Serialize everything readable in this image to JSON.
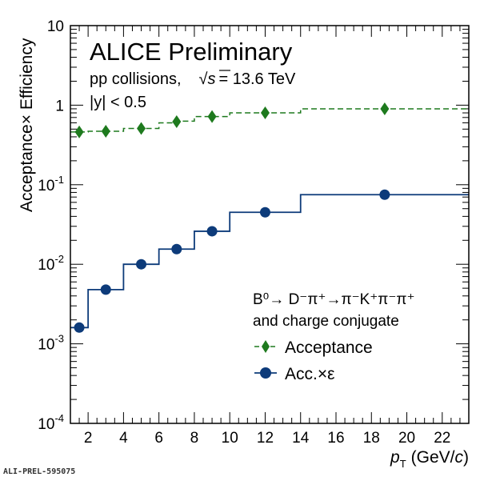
{
  "chart_data": {
    "type": "line",
    "title": "ALICE Preliminary",
    "annotations": {
      "system_prefix": "pp collisions,",
      "energy_sqrt": "√",
      "energy_symbol": "s",
      "energy_value": "= 13.6 TeV",
      "rapidity": "|y| < 0.5"
    },
    "xlabel": "p",
    "xlabel_sub": "T",
    "xlabel_unit_open": "(GeV/",
    "xlabel_unit_c": "c",
    "xlabel_unit_close": ")",
    "ylabel": "Acceptance× Efficiency",
    "xlim": [
      1,
      23.5
    ],
    "ylim": [
      0.0001,
      10
    ],
    "yscale": "log",
    "x_ticks": [
      "2",
      "4",
      "6",
      "8",
      "10",
      "12",
      "14",
      "16",
      "18",
      "20",
      "22"
    ],
    "y_ticks": [
      {
        "base": "10",
        "exp": "-4"
      },
      {
        "base": "10",
        "exp": "-3"
      },
      {
        "base": "10",
        "exp": "-2"
      },
      {
        "base": "10",
        "exp": "-1"
      },
      {
        "base": "1",
        "exp": ""
      },
      {
        "base": "10",
        "exp": ""
      }
    ],
    "legend": {
      "placement": "bottom-right",
      "header_line1": "B⁰→ D⁻π⁺→π⁻K⁺π⁻π⁺",
      "header_line2": "and charge conjugate"
    },
    "bin_edges": [
      1,
      2,
      4,
      6,
      8,
      10,
      14,
      23.5
    ],
    "series": [
      {
        "name": "Acceptance",
        "style": "dashed-step",
        "color": "#1e7a1e",
        "marker": "diamond",
        "bin_edges": [
          1,
          2,
          4,
          6,
          7,
          8,
          10,
          12,
          14,
          23.5
        ],
        "bin_values": [
          0.46,
          0.47,
          0.51,
          0.6,
          0.63,
          0.72,
          0.8,
          0.8,
          0.9
        ],
        "points_x": [
          1.5,
          3,
          5,
          7,
          9,
          12,
          18.75
        ],
        "points_y": [
          0.46,
          0.47,
          0.51,
          0.62,
          0.72,
          0.8,
          0.9
        ]
      },
      {
        "name": "Acc.×ε",
        "style": "solid-step",
        "color": "#0d3b7a",
        "marker": "circle",
        "bin_edges": [
          1,
          2,
          4,
          6,
          8,
          10,
          14,
          23.5
        ],
        "bin_values": [
          0.0016,
          0.0048,
          0.01,
          0.0155,
          0.026,
          0.045,
          0.075
        ],
        "points_x": [
          1.5,
          3,
          5,
          7,
          9,
          12,
          18.75
        ],
        "points_y": [
          0.0016,
          0.0048,
          0.01,
          0.0155,
          0.026,
          0.045,
          0.075
        ]
      }
    ]
  },
  "footer": "ALI-PREL-595075"
}
